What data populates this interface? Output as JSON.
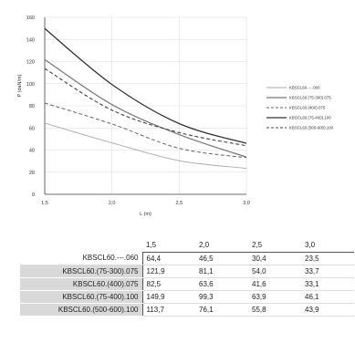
{
  "chart_data": {
    "type": "line",
    "title": "",
    "xlabel": "L (m)",
    "ylabel": "P (daN/m)",
    "xlim": [
      1.5,
      3.0
    ],
    "ylim": [
      0,
      160
    ],
    "x_ticks": [
      "1,5",
      "2,0",
      "2,5",
      "3,0"
    ],
    "y_ticks": [
      "0",
      "20",
      "40",
      "60",
      "80",
      "100",
      "120",
      "140",
      "160"
    ],
    "x": [
      1.5,
      2.0,
      2.5,
      3.0
    ],
    "legend_position": "right",
    "series": [
      {
        "name": "KBSCL60.---.060",
        "values": [
          64.4,
          46.5,
          30.4,
          23.5
        ],
        "color": "#aaaaaa",
        "dash": "solid",
        "width": 0.9
      },
      {
        "name": "KBSCL60.(75-300).075",
        "values": [
          121.9,
          81.1,
          54.0,
          33.7
        ],
        "color": "#777777",
        "dash": "solid",
        "width": 1.2
      },
      {
        "name": "KBSCL60.(400).075",
        "values": [
          82.5,
          63.6,
          41.6,
          33.1
        ],
        "color": "#666666",
        "dash": "dashed",
        "width": 1.0
      },
      {
        "name": "KBSCL60.(75-400).100",
        "values": [
          149.9,
          99.3,
          63.9,
          46.1
        ],
        "color": "#333333",
        "dash": "solid",
        "width": 1.3
      },
      {
        "name": "KBSCL60.(500-600).100",
        "values": [
          113.7,
          76.1,
          55.8,
          43.9
        ],
        "color": "#444444",
        "dash": "dashed",
        "width": 1.1
      }
    ]
  },
  "table": {
    "headers": [
      "1,5",
      "2,0",
      "2,5",
      "3,0"
    ],
    "rows": [
      {
        "label": "KBSCL60.---.060",
        "values": [
          "64,4",
          "46,5",
          "30,4",
          "23,5"
        ]
      },
      {
        "label": "KBSCL60.(75-300).075",
        "values": [
          "121,9",
          "81,1",
          "54,0",
          "33,7"
        ]
      },
      {
        "label": "KBSCL60.(400).075",
        "values": [
          "82,5",
          "63,6",
          "41,6",
          "33,1"
        ]
      },
      {
        "label": "KBSCL60.(75-400).100",
        "values": [
          "149,9",
          "99,3",
          "63,9",
          "46,1"
        ]
      },
      {
        "label": "KBSCL60.(500-600).100",
        "values": [
          "113,7",
          "76,1",
          "55,8",
          "43,9"
        ]
      }
    ]
  }
}
